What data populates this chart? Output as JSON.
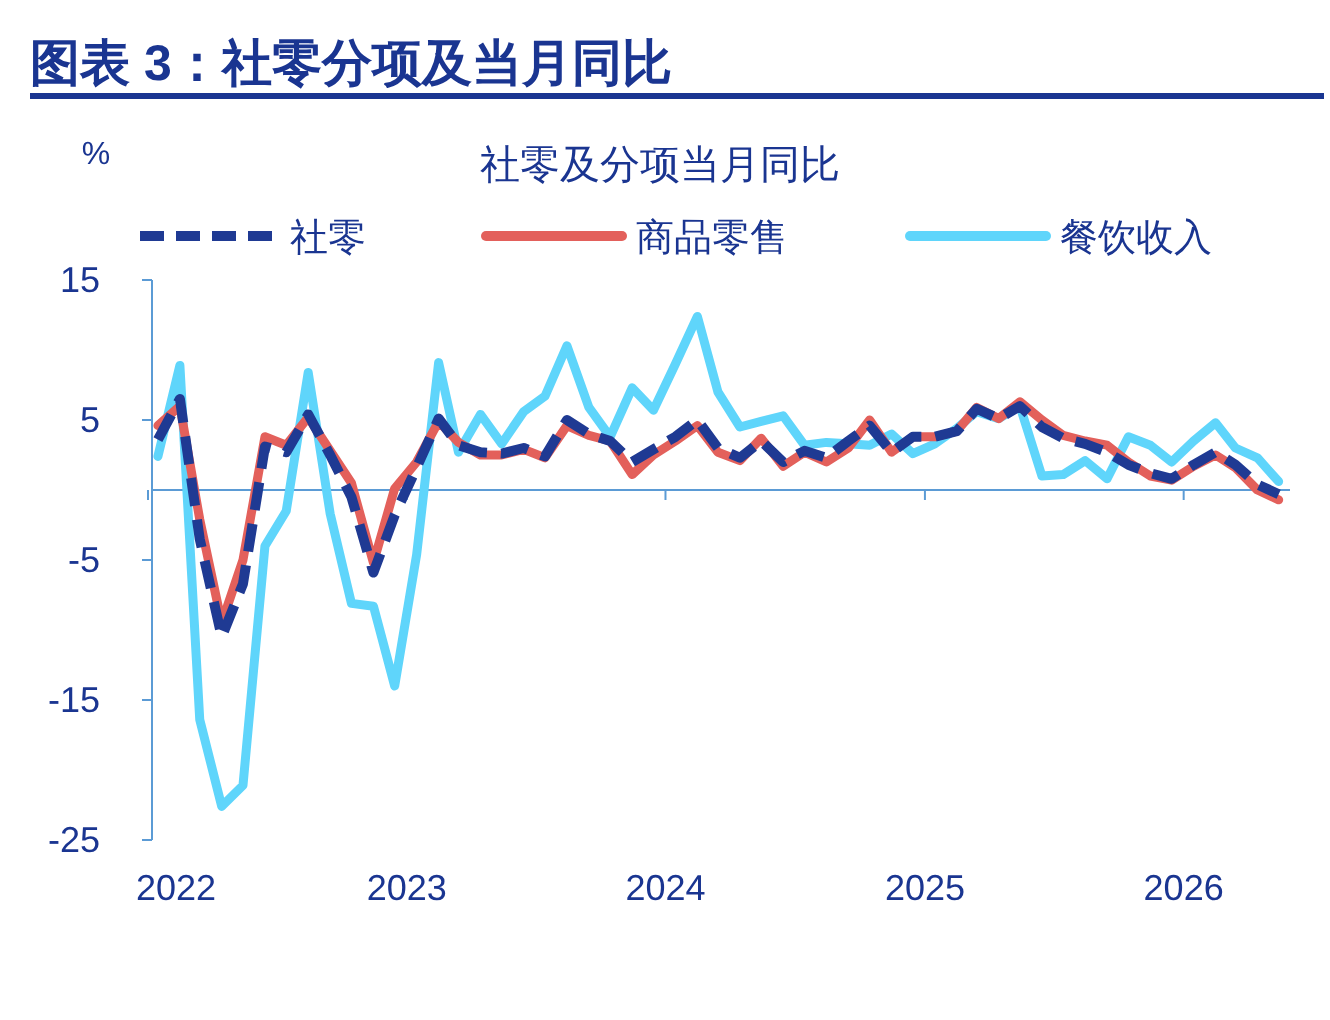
{
  "chart_data": {
    "type": "line",
    "title": "图表 3：社零分项及当月同比",
    "subtitle": "社零及分项当月同比",
    "ylabel": "%",
    "x": [
      "2022-01-15",
      "2022-02-15",
      "2022-03-15",
      "2022-04-15",
      "2022-05-15",
      "2022-06-15",
      "2022-07-15",
      "2022-08-15",
      "2022-09-15",
      "2022-10-15",
      "2022-11-15",
      "2022-12-15",
      "2023-01-15",
      "2023-02-15",
      "2023-03-15",
      "2023-04-15",
      "2023-05-15",
      "2023-06-15",
      "2023-07-15",
      "2023-08-15",
      "2023-09-15",
      "2023-10-15",
      "2023-11-15",
      "2023-12-15",
      "2024-01-15",
      "2024-02-15",
      "2024-03-15",
      "2024-04-15",
      "2024-05-15",
      "2024-06-15",
      "2024-07-15",
      "2024-08-15",
      "2024-09-15",
      "2024-10-15",
      "2024-11-15",
      "2024-12-15",
      "2025-01-15",
      "2025-02-15",
      "2025-03-15",
      "2025-04-15",
      "2025-05-15",
      "2025-06-15",
      "2025-07-15",
      "2025-08-15",
      "2025-09-15",
      "2025-10-15",
      "2025-11-15",
      "2025-12-15",
      "2026-01-15",
      "2026-02-15",
      "2026-03-15",
      "2026-04-15",
      "2026-05-15"
    ],
    "series": [
      {
        "name": "社零",
        "color": "#1f3a93",
        "line_style": "dashed",
        "values": [
          3.6,
          6.5,
          -3.5,
          -10.5,
          -6.7,
          3.1,
          2.7,
          5.4,
          2.5,
          -0.5,
          -5.9,
          -1.8,
          1.6,
          5.1,
          3.2,
          2.7,
          2.6,
          3.0,
          2.4,
          5.0,
          4.0,
          3.5,
          2.0,
          2.9,
          3.8,
          5.0,
          3.0,
          2.3,
          3.5,
          2.0,
          2.8,
          2.3,
          3.5,
          4.6,
          2.7,
          3.8,
          3.8,
          4.2,
          5.8,
          5.1,
          6.0,
          4.5,
          3.7,
          3.3,
          2.7,
          1.8,
          1.2,
          0.8,
          1.8,
          2.7,
          1.8,
          0.4,
          -0.3
        ]
      },
      {
        "name": "商品零售",
        "color": "#e3605b",
        "line_style": "solid",
        "values": [
          4.6,
          6.0,
          -2.1,
          -9.5,
          -5.0,
          3.8,
          3.2,
          5.2,
          2.8,
          0.5,
          -5.2,
          0.1,
          2.0,
          4.9,
          3.4,
          2.5,
          2.5,
          2.9,
          2.3,
          4.6,
          3.9,
          3.5,
          1.1,
          2.5,
          3.5,
          4.6,
          2.7,
          2.1,
          3.7,
          1.7,
          2.7,
          2.0,
          3.0,
          5.0,
          2.7,
          3.8,
          3.8,
          4.2,
          5.9,
          5.1,
          6.3,
          5.0,
          3.9,
          3.5,
          3.2,
          2.0,
          1.0,
          0.7,
          1.7,
          2.5,
          1.6,
          0.0,
          -0.7
        ]
      },
      {
        "name": "餐饮收入",
        "color": "#5fd5fb",
        "line_style": "solid",
        "values": [
          2.4,
          8.9,
          -16.4,
          -22.6,
          -21.1,
          -4.0,
          -1.5,
          8.4,
          -1.7,
          -8.1,
          -8.3,
          -14.0,
          -4.6,
          9.1,
          2.7,
          5.4,
          3.3,
          5.6,
          6.7,
          10.3,
          5.9,
          3.8,
          7.3,
          5.7,
          9.0,
          12.4,
          7.0,
          4.5,
          4.9,
          5.3,
          3.2,
          3.4,
          3.3,
          3.2,
          4.0,
          2.6,
          3.3,
          4.4,
          5.6,
          5.1,
          6.0,
          1.0,
          1.1,
          2.1,
          0.8,
          3.8,
          3.2,
          2.0,
          3.5,
          4.8,
          3.0,
          2.3,
          0.6
        ]
      }
    ],
    "xlim": [
      "2022-01-01",
      "2026-05-31"
    ],
    "xticks": [
      "2022",
      "2023",
      "2024",
      "2025",
      "2026"
    ],
    "ylim": [
      -25,
      15
    ],
    "yticks": [
      15,
      5,
      -5,
      -15,
      -25
    ],
    "ref_lines": [
      {
        "axis": "y",
        "value": 0,
        "color": "#5b9bd5"
      }
    ],
    "legend": "top",
    "grid": false
  }
}
